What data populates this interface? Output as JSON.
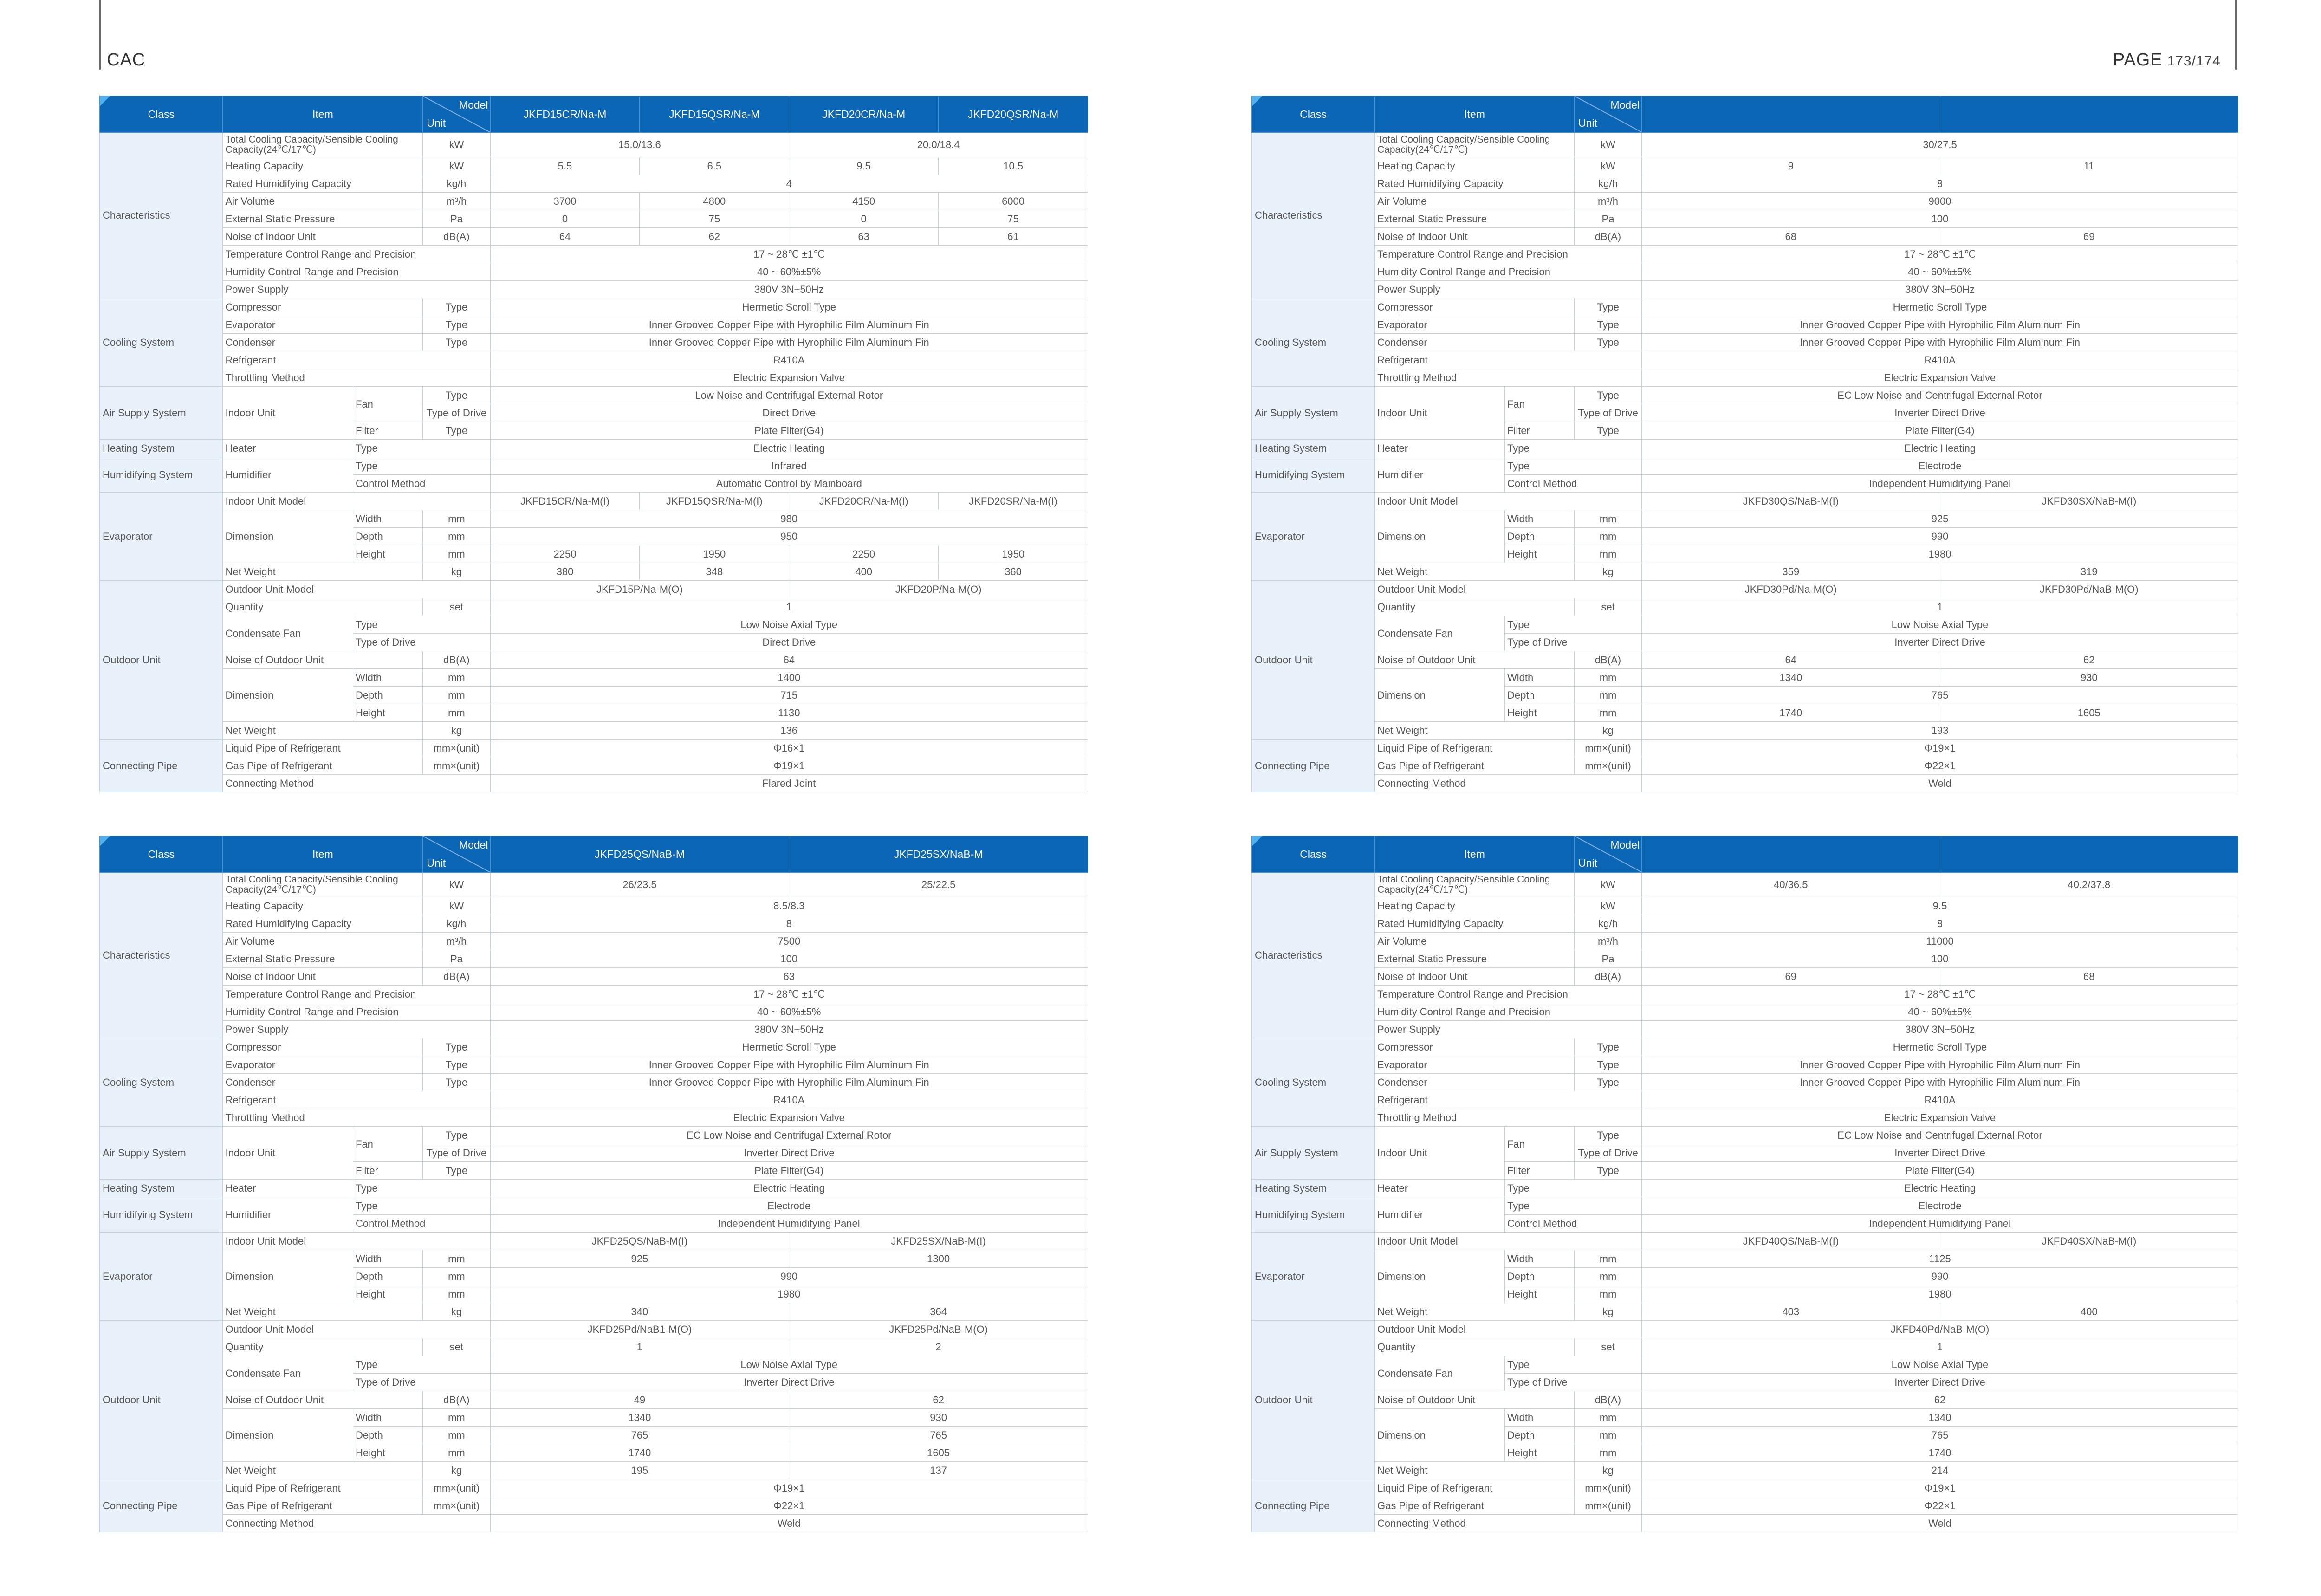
{
  "page": {
    "section": "CAC",
    "page_label": "PAGE",
    "page_number": "173/174"
  },
  "header": {
    "class": "Class",
    "item": "Item",
    "model": "Model",
    "unit": "Unit"
  },
  "labels": {
    "characteristics": "Characteristics",
    "total_cooling": "Total Cooling Capacity/Sensible Cooling Capacity(24℃/17℃)",
    "heating_capacity": "Heating Capacity",
    "rated_humidifying": "Rated Humidifying Capacity",
    "air_volume": "Air Volume",
    "esp": "External Static Pressure",
    "noise_indoor": "Noise of Indoor Unit",
    "temp_control": "Temperature Control Range and Precision",
    "humidity_control": "Humidity Control Range and Precision",
    "power_supply": "Power Supply",
    "cooling_system": "Cooling System",
    "compressor": "Compressor",
    "evaporator": "Evaporator",
    "condenser": "Condenser",
    "refrigerant": "Refrigerant",
    "throttling": "Throttling Method",
    "air_supply_system": "Air Supply System",
    "indoor_unit": "Indoor Unit",
    "fan": "Fan",
    "type": "Type",
    "type_of_drive": "Type of Drive",
    "filter": "Filter",
    "heating_system": "Heating System",
    "heater": "Heater",
    "humidifying_system": "Humidifying System",
    "humidifier": "Humidifier",
    "control_method": "Control Method",
    "indoor_unit_model": "Indoor Unit Model",
    "dimension": "Dimension",
    "width": "Width",
    "depth": "Depth",
    "height": "Height",
    "net_weight": "Net Weight",
    "outdoor_unit": "Outdoor Unit",
    "outdoor_unit_model": "Outdoor Unit Model",
    "quantity": "Quantity",
    "condensate_fan": "Condensate Fan",
    "noise_outdoor": "Noise of Outdoor Unit",
    "connecting_pipe": "Connecting Pipe",
    "liquid_pipe": "Liquid Pipe of Refrigerant",
    "gas_pipe": "Gas Pipe of Refrigerant",
    "connecting_method": "Connecting Method"
  },
  "units": {
    "kw": "kW",
    "kgh": "kg/h",
    "m3h": "m³/h",
    "pa": "Pa",
    "dba": "dB(A)",
    "type": "Type",
    "mm": "mm",
    "kg": "kg",
    "set": "set",
    "mm_unit": "mm×(unit)"
  },
  "tables": [
    {
      "models": [
        "JKFD15CR/Na-M",
        "JKFD15QSR/Na-M",
        "JKFD20CR/Na-M",
        "JKFD20QSR/Na-M"
      ],
      "total_cooling": [
        "15.0/13.6",
        "20.0/18.4"
      ],
      "heating": [
        "5.5",
        "6.5",
        "9.5",
        "10.5"
      ],
      "humid_cap": "4",
      "air_volume": [
        "3700",
        "4800",
        "4150",
        "6000"
      ],
      "esp": [
        "0",
        "75",
        "0",
        "75"
      ],
      "noise_in": [
        "64",
        "62",
        "63",
        "61"
      ],
      "temp": "17 ~ 28℃ ±1℃",
      "humidity": "40 ~ 60%±5%",
      "power": "380V 3N~50Hz",
      "compressor": "Hermetic Scroll Type",
      "evaporator": "Inner Grooved Copper Pipe with Hyrophilic Film Aluminum Fin",
      "condenser": "Inner Grooved Copper Pipe with Hyrophilic Film Aluminum Fin",
      "refrigerant": "R410A",
      "throttling": "Electric Expansion Valve",
      "fan_type": "Low Noise and Centrifugal External Rotor",
      "fan_drive": "Direct Drive",
      "filter": "Plate Filter(G4)",
      "heater": "Electric Heating",
      "humidifier_type": "Infrared",
      "humidifier_control": "Automatic Control by Mainboard",
      "indoor_models": [
        "JKFD15CR/Na-M(I)",
        "JKFD15QSR/Na-M(I)",
        "JKFD20CR/Na-M(I)",
        "JKFD20SR/Na-M(I)"
      ],
      "evap_width": "980",
      "evap_depth": "950",
      "evap_height": [
        "2250",
        "1950",
        "2250",
        "1950"
      ],
      "evap_weight": [
        "380",
        "348",
        "400",
        "360"
      ],
      "outdoor_models": [
        "JKFD15P/Na-M(O)",
        "JKFD20P/Na-M(O)"
      ],
      "quantity": "1",
      "cond_fan_type": "Low Noise Axial Type",
      "cond_fan_drive": "Direct Drive",
      "noise_out": "64",
      "out_width": "1400",
      "out_depth": "715",
      "out_height": "1130",
      "out_weight": "136",
      "liquid": "Φ16×1",
      "gas": "Φ19×1",
      "connect": "Flared Joint"
    },
    {
      "models": [
        "",
        ""
      ],
      "total_cooling": "30/27.5",
      "heating": [
        "9",
        "11"
      ],
      "humid_cap": "8",
      "air_volume": "9000",
      "esp": "100",
      "noise_in": [
        "68",
        "69"
      ],
      "temp": "17 ~ 28℃ ±1℃",
      "humidity": "40 ~ 60%±5%",
      "power": "380V 3N~50Hz",
      "compressor": "Hermetic Scroll Type",
      "evaporator": "Inner Grooved Copper Pipe with Hyrophilic Film Aluminum Fin",
      "condenser": "Inner Grooved Copper Pipe with Hyrophilic Film Aluminum Fin",
      "refrigerant": "R410A",
      "throttling": "Electric Expansion Valve",
      "fan_type": "EC Low Noise and Centrifugal External Rotor",
      "fan_drive": "Inverter Direct Drive",
      "filter": "Plate Filter(G4)",
      "heater": "Electric Heating",
      "humidifier_type": "Electrode",
      "humidifier_control": "Independent Humidifying Panel",
      "indoor_models": [
        "JKFD30QS/NaB-M(I)",
        "JKFD30SX/NaB-M(I)"
      ],
      "evap_width": "925",
      "evap_depth": "990",
      "evap_height": "1980",
      "evap_weight": [
        "359",
        "319"
      ],
      "outdoor_models": [
        "JKFD30Pd/Na-M(O)",
        "JKFD30Pd/NaB-M(O)"
      ],
      "quantity": "1",
      "cond_fan_type": "Low Noise Axial Type",
      "cond_fan_drive": "Inverter Direct Drive",
      "noise_out": [
        "64",
        "62"
      ],
      "out_width": [
        "1340",
        "930"
      ],
      "out_depth": "765",
      "out_height": [
        "1740",
        "1605"
      ],
      "out_weight": "193",
      "liquid": "Φ19×1",
      "gas": "Φ22×1",
      "connect": "Weld"
    },
    {
      "models": [
        "JKFD25QS/NaB-M",
        "JKFD25SX/NaB-M"
      ],
      "total_cooling": [
        "26/23.5",
        "25/22.5"
      ],
      "heating": "8.5/8.3",
      "humid_cap": "8",
      "air_volume": "7500",
      "esp": "100",
      "noise_in": "63",
      "temp": "17 ~ 28℃ ±1℃",
      "humidity": "40 ~ 60%±5%",
      "power": "380V 3N~50Hz",
      "compressor": "Hermetic Scroll Type",
      "evaporator": "Inner Grooved Copper Pipe with Hyrophilic Film Aluminum Fin",
      "condenser": "Inner Grooved Copper Pipe with Hyrophilic Film Aluminum Fin",
      "refrigerant": "R410A",
      "throttling": "Electric Expansion Valve",
      "fan_type": "EC Low Noise and Centrifugal External Rotor",
      "fan_drive": "Inverter Direct Drive",
      "filter": "Plate Filter(G4)",
      "heater": "Electric Heating",
      "humidifier_type": "Electrode",
      "humidifier_control": "Independent Humidifying Panel",
      "indoor_models": [
        "JKFD25QS/NaB-M(I)",
        "JKFD25SX/NaB-M(I)"
      ],
      "evap_width": [
        "925",
        "1300"
      ],
      "evap_depth": "990",
      "evap_height": "1980",
      "evap_weight": [
        "340",
        "364"
      ],
      "outdoor_models": [
        "JKFD25Pd/NaB1-M(O)",
        "JKFD25Pd/NaB-M(O)"
      ],
      "quantity": [
        "1",
        "2"
      ],
      "cond_fan_type": "Low Noise Axial Type",
      "cond_fan_drive": "Inverter Direct Drive",
      "noise_out": [
        "49",
        "62"
      ],
      "out_width": [
        "1340",
        "930"
      ],
      "out_depth": [
        "765",
        "765"
      ],
      "out_height": [
        "1740",
        "1605"
      ],
      "out_weight": [
        "195",
        "137"
      ],
      "liquid": "Φ19×1",
      "gas": "Φ22×1",
      "connect": "Weld"
    },
    {
      "models": [
        "",
        ""
      ],
      "total_cooling": [
        "40/36.5",
        "40.2/37.8"
      ],
      "heating": "9.5",
      "humid_cap": "8",
      "air_volume": "11000",
      "esp": "100",
      "noise_in": [
        "69",
        "68"
      ],
      "temp": "17 ~ 28℃ ±1℃",
      "humidity": "40 ~ 60%±5%",
      "power": "380V 3N~50Hz",
      "compressor": "Hermetic Scroll Type",
      "evaporator": "Inner Grooved Copper Pipe with Hyrophilic Film Aluminum Fin",
      "condenser": "Inner Grooved Copper Pipe with Hyrophilic Film Aluminum Fin",
      "refrigerant": "R410A",
      "throttling": "Electric Expansion Valve",
      "fan_type": "EC Low Noise and Centrifugal External Rotor",
      "fan_drive": "Inverter Direct Drive",
      "filter": "Plate Filter(G4)",
      "heater": "Electric Heating",
      "humidifier_type": "Electrode",
      "humidifier_control": "Independent Humidifying Panel",
      "indoor_models": [
        "JKFD40QS/NaB-M(I)",
        "JKFD40SX/NaB-M(I)"
      ],
      "evap_width": "1125",
      "evap_depth": "990",
      "evap_height": "1980",
      "evap_weight": [
        "403",
        "400"
      ],
      "outdoor_models": "JKFD40Pd/NaB-M(O)",
      "quantity": "1",
      "cond_fan_type": "Low Noise Axial Type",
      "cond_fan_drive": "Inverter Direct Drive",
      "noise_out": "62",
      "out_width": "1340",
      "out_depth": "765",
      "out_height": "1740",
      "out_weight": "214",
      "liquid": "Φ19×1",
      "gas": "Φ22×1",
      "connect": "Weld"
    }
  ]
}
